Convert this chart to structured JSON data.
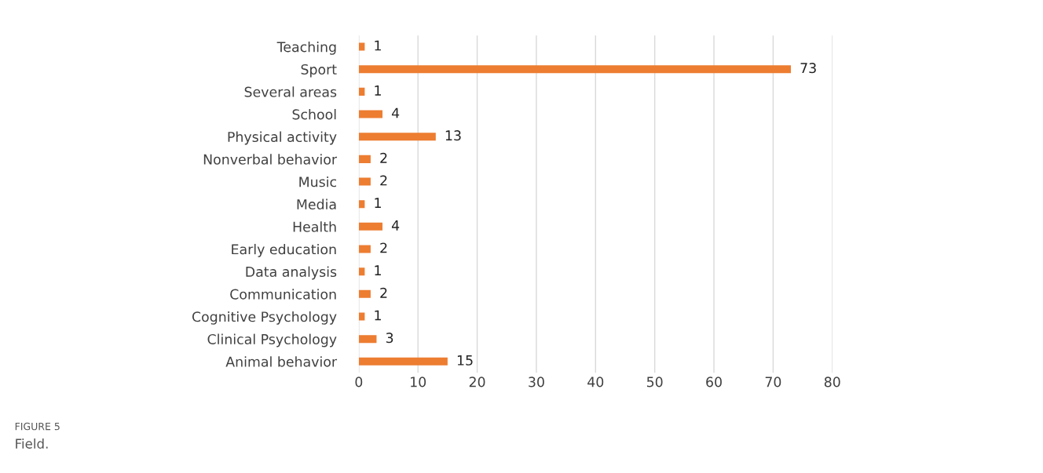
{
  "chart_data": {
    "type": "bar",
    "orientation": "horizontal",
    "categories": [
      "Teaching",
      "Sport",
      "Several areas",
      "School",
      "Physical activity",
      "Nonverbal behavior",
      "Music",
      "Media",
      "Health",
      "Early education",
      "Data analysis",
      "Communication",
      "Cognitive Psychology",
      "Clinical Psychology",
      "Animal behavior"
    ],
    "values": [
      1,
      73,
      1,
      4,
      13,
      2,
      2,
      1,
      4,
      2,
      1,
      2,
      1,
      3,
      15
    ],
    "color": "#ed7d31",
    "xlim": [
      0,
      80
    ],
    "xticks": [
      0,
      10,
      20,
      30,
      40,
      50,
      60,
      70,
      80
    ],
    "grid": "x",
    "data_labels": true,
    "annotations": [
      "FIGURE 5",
      "Field."
    ]
  }
}
